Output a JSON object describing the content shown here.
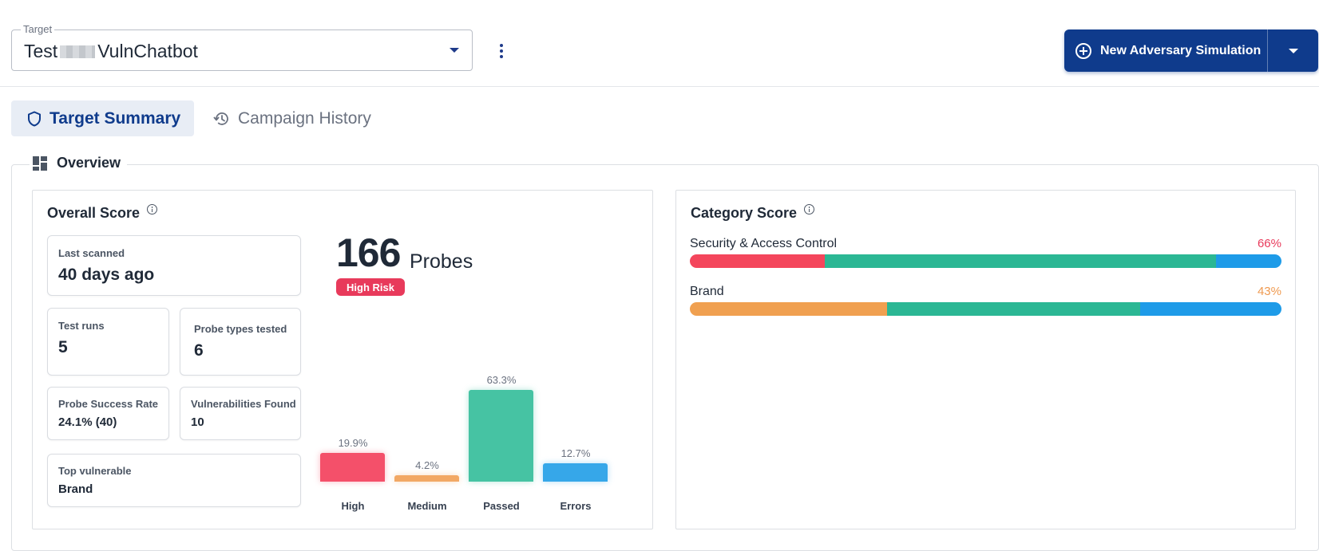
{
  "target": {
    "label": "Target",
    "value_prefix": "Test",
    "value_suffix": "VulnChatbot"
  },
  "header": {
    "new_simulation_label": "New Adversary Simulation"
  },
  "tabs": [
    {
      "label": "Target Summary",
      "active": true,
      "icon": "shield-icon"
    },
    {
      "label": "Campaign History",
      "active": false,
      "icon": "history-icon"
    }
  ],
  "overview": {
    "title": "Overview",
    "overall": {
      "title": "Overall Score",
      "last_scanned_label": "Last scanned",
      "last_scanned_value": "40 days ago",
      "test_runs_label": "Test runs",
      "test_runs_value": "5",
      "probe_types_label": "Probe types tested",
      "probe_types_value": "6",
      "success_rate_label": "Probe Success Rate",
      "success_rate_value": "24.1% (40)",
      "vulns_label": "Vulnerabilities Found",
      "vulns_value": "10",
      "top_vuln_label": "Top vulnerable",
      "top_vuln_value": "Brand",
      "probes_count": "166",
      "probes_word": "Probes",
      "risk_badge": "High Risk"
    },
    "category": {
      "title": "Category Score",
      "items": [
        {
          "name": "Security & Access Control",
          "score": "66%",
          "score_color": "#e83a5b",
          "segments": [
            0.228,
            0.661,
            0.111
          ]
        },
        {
          "name": "Brand",
          "score": "43%",
          "score_color": "#ef9a50",
          "segments": [
            0.333,
            0.428,
            0.239
          ]
        }
      ],
      "segment_colors": [
        "#f4465c",
        "#2bb794",
        "#1e9be8"
      ],
      "segment_colors_alt": [
        "#f0a050",
        "#2bb794",
        "#1e9be8"
      ]
    }
  },
  "chart_data": {
    "type": "bar",
    "categories": [
      "High",
      "Medium",
      "Passed",
      "Errors"
    ],
    "values": [
      19.9,
      4.2,
      63.3,
      12.7
    ],
    "value_labels": [
      "19.9%",
      "4.2%",
      "63.3%",
      "12.7%"
    ],
    "colors": [
      "#f4506a",
      "#f2a865",
      "#46c3a3",
      "#36a7e9"
    ]
  },
  "colors": {
    "brand": "#0f3b8c",
    "danger": "#e83a5b"
  }
}
